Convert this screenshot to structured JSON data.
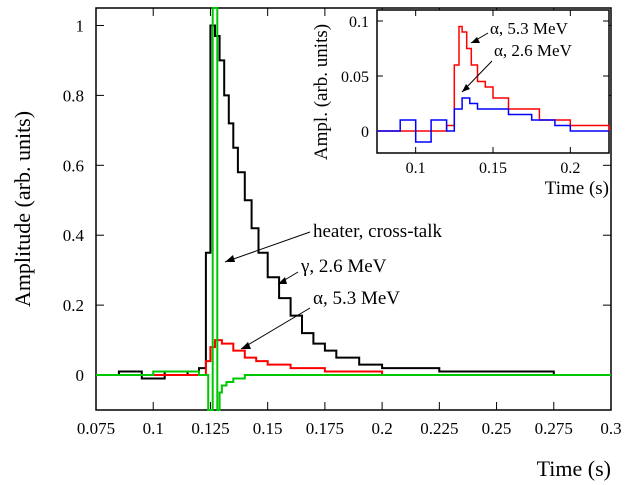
{
  "chart_data": [
    {
      "type": "line",
      "xlabel": "Time (s)",
      "ylabel": "Amplitude (arb. units)",
      "xlim": [
        0.075,
        0.3
      ],
      "ylim": [
        -0.1,
        1.05
      ],
      "x_ticks": [
        "0.075",
        "0.1",
        "0.125",
        "0.15",
        "0.175",
        "0.2",
        "0.225",
        "0.25",
        "0.275",
        "0.3"
      ],
      "y_ticks": [
        "0",
        "0.2",
        "0.4",
        "0.6",
        "0.8",
        "1"
      ],
      "grid": false,
      "series": [
        {
          "color": "#000000",
          "x": [
            0.075,
            0.085,
            0.095,
            0.105,
            0.115,
            0.12,
            0.123,
            0.125,
            0.127,
            0.129,
            0.131,
            0.133,
            0.135,
            0.137,
            0.14,
            0.143,
            0.146,
            0.15,
            0.155,
            0.16,
            0.165,
            0.17,
            0.175,
            0.18,
            0.19,
            0.2,
            0.225,
            0.25,
            0.275,
            0.3
          ],
          "y": [
            0,
            0.01,
            -0.01,
            0.01,
            0.0,
            0.02,
            0.35,
            1.0,
            0.97,
            0.9,
            0.8,
            0.72,
            0.65,
            0.58,
            0.5,
            0.42,
            0.35,
            0.28,
            0.22,
            0.17,
            0.12,
            0.09,
            0.07,
            0.05,
            0.03,
            0.02,
            0.01,
            0.01,
            0.0,
            0.0
          ]
        },
        {
          "color": "#ff0000",
          "x": [
            0.075,
            0.1,
            0.12,
            0.123,
            0.125,
            0.127,
            0.13,
            0.135,
            0.14,
            0.145,
            0.15,
            0.16,
            0.175,
            0.2,
            0.25,
            0.3
          ],
          "y": [
            0,
            0.0,
            0.0,
            0.04,
            0.08,
            0.1,
            0.09,
            0.07,
            0.05,
            0.04,
            0.03,
            0.02,
            0.01,
            0.0,
            0.0,
            0.0
          ]
        },
        {
          "color": "#00c800",
          "x": [
            0.075,
            0.1,
            0.12,
            0.124,
            0.126,
            0.127,
            0.128,
            0.129,
            0.13,
            0.132,
            0.135,
            0.14,
            0.15,
            0.175,
            0.2,
            0.25,
            0.3
          ],
          "y": [
            0,
            0.01,
            0.0,
            -0.1,
            1.05,
            1.05,
            -0.1,
            -0.05,
            -0.03,
            -0.02,
            -0.01,
            0.0,
            0.0,
            0.0,
            0.0,
            0.0,
            0.0
          ]
        }
      ],
      "annotations": [
        "heater, cross-talk",
        "γ, 2.6 MeV",
        "α, 5.3 MeV"
      ]
    },
    {
      "type": "line",
      "xlabel": "Time (s)",
      "ylabel": "Ampl. (arb. units)",
      "xlim": [
        0.075,
        0.225
      ],
      "ylim": [
        -0.02,
        0.11
      ],
      "x_ticks": [
        "0.1",
        "0.15",
        "0.2"
      ],
      "y_ticks": [
        "0",
        "0.05",
        "0.1"
      ],
      "grid": false,
      "series": [
        {
          "color": "#ff0000",
          "x": [
            0.075,
            0.1,
            0.12,
            0.125,
            0.128,
            0.13,
            0.133,
            0.136,
            0.14,
            0.145,
            0.15,
            0.16,
            0.18,
            0.2,
            0.225
          ],
          "y": [
            0.0,
            0.0,
            0.005,
            0.06,
            0.095,
            0.09,
            0.075,
            0.06,
            0.045,
            0.04,
            0.03,
            0.02,
            0.01,
            0.005,
            0.0
          ]
        },
        {
          "color": "#0000ff",
          "x": [
            0.075,
            0.09,
            0.1,
            0.11,
            0.12,
            0.125,
            0.13,
            0.135,
            0.14,
            0.15,
            0.16,
            0.175,
            0.19,
            0.2,
            0.225
          ],
          "y": [
            0.0,
            0.01,
            -0.01,
            0.01,
            0.0,
            0.02,
            0.03,
            0.025,
            0.02,
            0.02,
            0.015,
            0.01,
            0.005,
            0.0,
            0.0
          ]
        }
      ],
      "annotations": [
        "α, 5.3 MeV",
        "α, 2.6 MeV"
      ]
    }
  ]
}
